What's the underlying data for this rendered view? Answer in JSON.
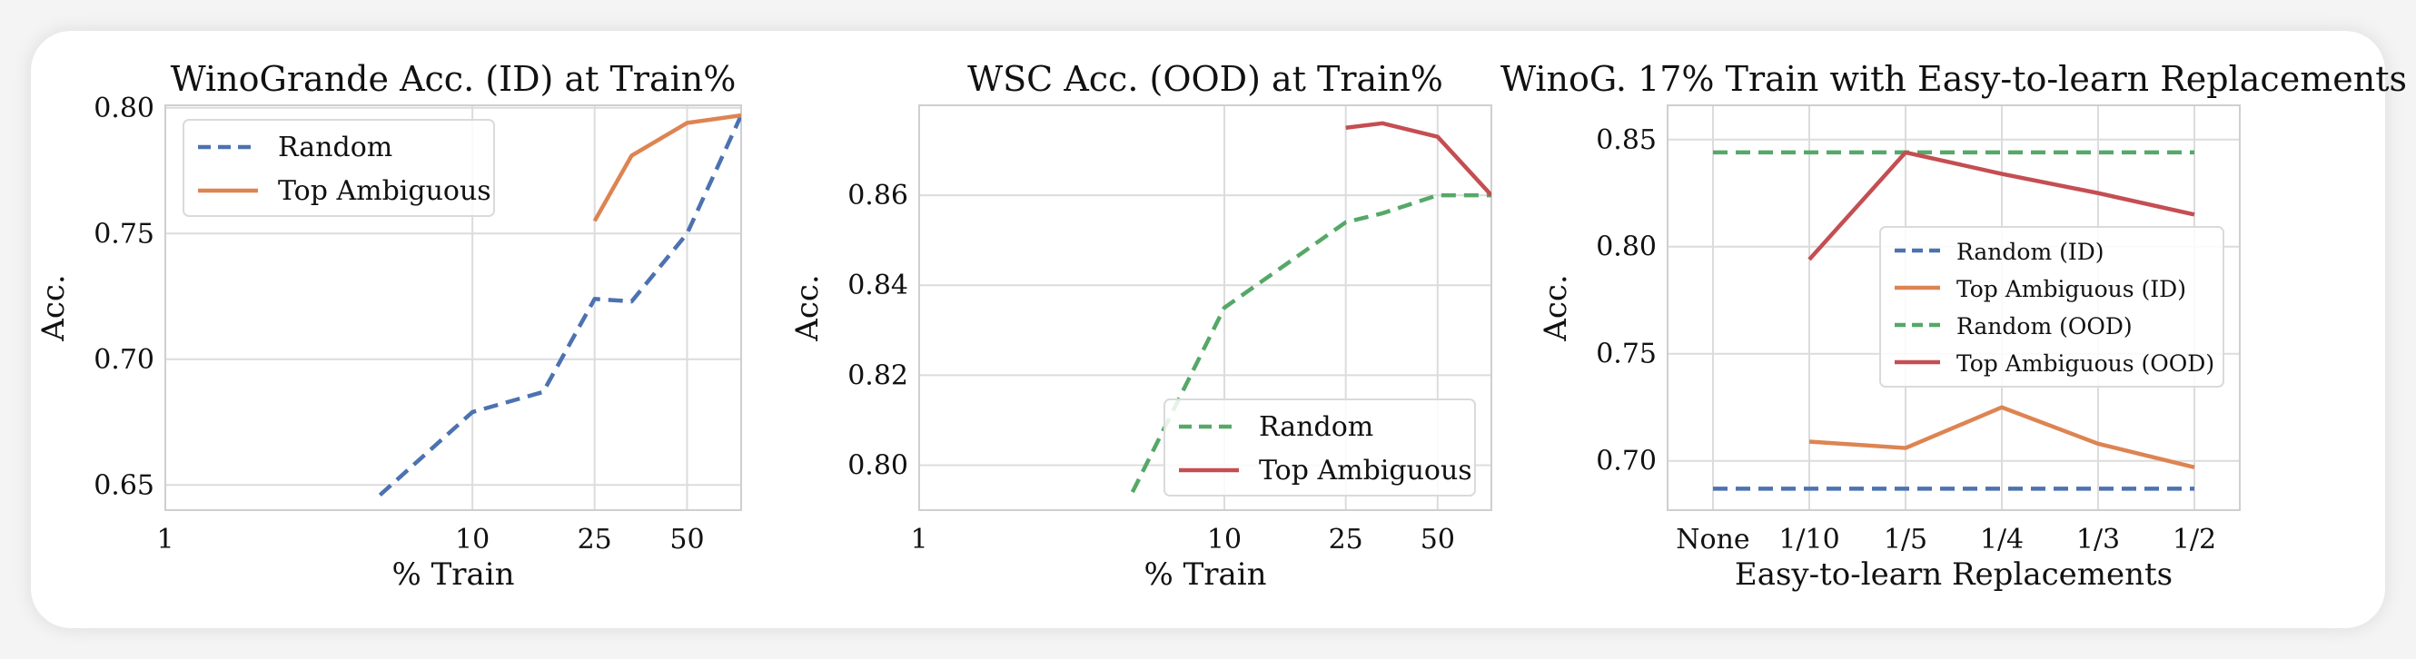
{
  "colors": {
    "blue": "#4c72b0",
    "orange": "#dd8452",
    "green": "#55a868",
    "red": "#c44e52"
  },
  "chart_data": [
    {
      "type": "line",
      "title": "WinoGrande Acc. (ID) at Train%",
      "xlabel": "% Train",
      "ylabel": "Acc.",
      "x_scale": "log",
      "xticks": [
        "1",
        "10",
        "25",
        "50"
      ],
      "xlim": [
        1,
        75
      ],
      "ylim": [
        0.64,
        0.801
      ],
      "yticks": [
        "0.65",
        "0.70",
        "0.75",
        "0.80"
      ],
      "grid": true,
      "legend_position": "top-left",
      "series": [
        {
          "name": "Random",
          "style": "dashed",
          "color": "#4c72b0",
          "x": [
            5,
            10,
            17,
            25,
            33,
            50,
            75
          ],
          "y": [
            0.646,
            0.679,
            0.687,
            0.724,
            0.723,
            0.75,
            0.797
          ]
        },
        {
          "name": "Top Ambiguous",
          "style": "solid",
          "color": "#dd8452",
          "x": [
            25,
            33,
            50,
            75
          ],
          "y": [
            0.755,
            0.781,
            0.794,
            0.797
          ]
        }
      ]
    },
    {
      "type": "line",
      "title": "WSC Acc. (OOD) at Train%",
      "xlabel": "% Train",
      "ylabel": "Acc.",
      "x_scale": "log",
      "xticks": [
        "1",
        "10",
        "25",
        "50"
      ],
      "xlim": [
        1,
        75
      ],
      "ylim": [
        0.79,
        0.88
      ],
      "yticks": [
        "0.80",
        "0.82",
        "0.84",
        "0.86"
      ],
      "grid": true,
      "legend_position": "bottom-right",
      "series": [
        {
          "name": "Random",
          "style": "dashed",
          "color": "#55a868",
          "x": [
            5,
            10,
            25,
            33,
            50,
            75
          ],
          "y": [
            0.794,
            0.835,
            0.854,
            0.856,
            0.86,
            0.86
          ]
        },
        {
          "name": "Top Ambiguous",
          "style": "solid",
          "color": "#c44e52",
          "x": [
            25,
            33,
            50,
            75
          ],
          "y": [
            0.875,
            0.876,
            0.873,
            0.86
          ]
        }
      ]
    },
    {
      "type": "line",
      "title": "WinoG. 17% Train with Easy-to-learn Replacements",
      "xlabel": "Easy-to-learn Replacements",
      "ylabel": "Acc.",
      "categories": [
        "None",
        "1/10",
        "1/5",
        "1/4",
        "1/3",
        "1/2"
      ],
      "ylim": [
        0.677,
        0.866
      ],
      "yticks": [
        "0.70",
        "0.75",
        "0.80",
        "0.85"
      ],
      "grid": true,
      "legend_position": "center-right",
      "series": [
        {
          "name": "Random (ID)",
          "style": "dashed",
          "color": "#4c72b0",
          "values": [
            0.687,
            0.687,
            0.687,
            0.687,
            0.687,
            0.687
          ]
        },
        {
          "name": "Top Ambiguous (ID)",
          "style": "solid",
          "color": "#dd8452",
          "values": [
            null,
            0.709,
            0.706,
            0.725,
            0.708,
            0.697
          ]
        },
        {
          "name": "Random (OOD)",
          "style": "dashed",
          "color": "#55a868",
          "values": [
            0.844,
            0.844,
            0.844,
            0.844,
            0.844,
            0.844
          ]
        },
        {
          "name": "Top Ambiguous (OOD)",
          "style": "solid",
          "color": "#c44e52",
          "values": [
            null,
            0.794,
            0.844,
            0.834,
            0.825,
            0.815
          ]
        }
      ]
    }
  ]
}
